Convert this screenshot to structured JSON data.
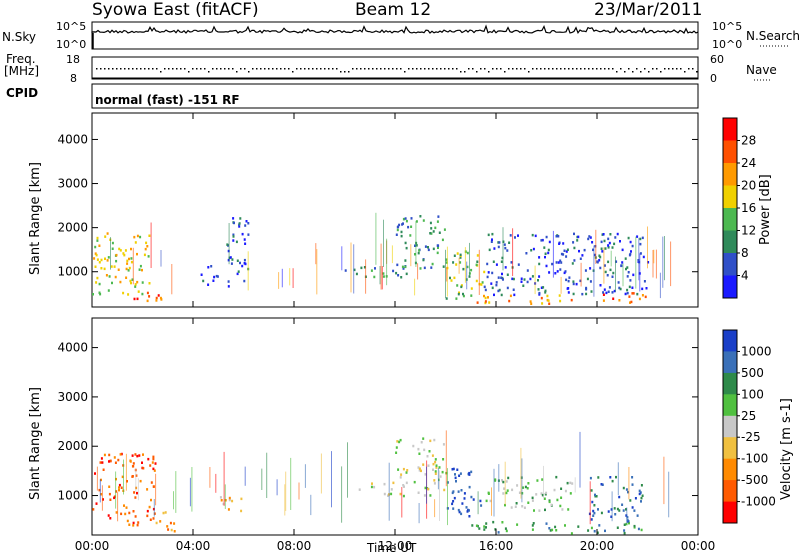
{
  "header": {
    "station": "Syowa East (fitACF)",
    "beam": "Beam 12",
    "date": "23/Mar/2011"
  },
  "nsky_panel": {
    "left_label": "N.Sky",
    "right_label": "N.Search",
    "left_ticks": [
      "10^5",
      "10^0"
    ],
    "right_ticks": [
      "10^5",
      "10^0"
    ]
  },
  "freq_panel": {
    "left_label_1": "Freq.",
    "left_label_2": "[MHz]",
    "right_label": "Nave",
    "left_ticks": [
      "18",
      "8"
    ],
    "right_ticks": [
      "60",
      "0"
    ]
  },
  "cpid": {
    "label": "CPID",
    "value": "normal (fast) -151 RF"
  },
  "chart_data": [
    {
      "type": "heatmap",
      "name": "power",
      "ylabel": "Slant Range [km]",
      "yticks": [
        1000,
        2000,
        3000,
        4000
      ],
      "ylim": [
        200,
        4600
      ],
      "xticks": [
        "00:00",
        "04:00",
        "08:00",
        "12:00",
        "16:00",
        "20:00",
        "00:00"
      ],
      "xlim_hours": [
        0,
        24
      ],
      "colorbar": {
        "label": "Power [dB]",
        "ticks": [
          "4",
          "8",
          "12",
          "16",
          "20",
          "24",
          "28"
        ],
        "colors": [
          "#1a1aff",
          "#3050c8",
          "#2f8a5a",
          "#4cb850",
          "#f0d000",
          "#ff9a00",
          "#ff5000",
          "#ff0000"
        ]
      },
      "regions": [
        {
          "t0": 0.0,
          "t1": 2.3,
          "r0": 500,
          "r1": 1900,
          "level": 4
        },
        {
          "t0": 1.5,
          "t1": 2.8,
          "r0": 300,
          "r1": 600,
          "level": 6
        },
        {
          "t0": 4.3,
          "t1": 5.0,
          "r0": 700,
          "r1": 1200,
          "level": 1
        },
        {
          "t0": 5.3,
          "t1": 6.2,
          "r0": 600,
          "r1": 2300,
          "level": 1
        },
        {
          "t0": 10.0,
          "t1": 12.5,
          "r0": 900,
          "r1": 1200,
          "level": 2
        },
        {
          "t0": 12.0,
          "t1": 14.0,
          "r0": 1100,
          "r1": 2300,
          "level": 2
        },
        {
          "t0": 14.0,
          "t1": 15.5,
          "r0": 400,
          "r1": 1500,
          "level": 3
        },
        {
          "t0": 15.0,
          "t1": 19.0,
          "r0": 300,
          "r1": 500,
          "level": 5
        },
        {
          "t0": 20.0,
          "t1": 21.9,
          "r0": 300,
          "r1": 550,
          "level": 6
        },
        {
          "t0": 15.5,
          "t1": 22.0,
          "r0": 500,
          "r1": 1900,
          "level": 1
        }
      ]
    },
    {
      "type": "heatmap",
      "name": "velocity",
      "ylabel": "Slant Range [km]",
      "yticks": [
        1000,
        2000,
        3000,
        4000
      ],
      "ylim": [
        200,
        4600
      ],
      "xticks": [
        "00:00",
        "04:00",
        "08:00",
        "12:00",
        "16:00",
        "20:00",
        "00:00"
      ],
      "xlim_hours": [
        0,
        24
      ],
      "xlabel": "Time UT",
      "colorbar": {
        "label": "Velocity [m s-1]",
        "ticks": [
          "1000",
          "500",
          "100",
          "25",
          "-25",
          "-100",
          "-500",
          "-1000"
        ],
        "colors": [
          "#1a3fc8",
          "#3a70b8",
          "#2e8a4a",
          "#50c040",
          "#c8c8c8",
          "#f0c040",
          "#ff8a00",
          "#ff5a00",
          "#ff0000"
        ]
      },
      "regions": [
        {
          "t0": 0.0,
          "t1": 2.5,
          "r0": 400,
          "r1": 1900,
          "level": 7
        },
        {
          "t0": 2.5,
          "t1": 3.5,
          "r0": 300,
          "r1": 700,
          "level": 6
        },
        {
          "t0": 5.0,
          "t1": 6.0,
          "r0": 700,
          "r1": 1100,
          "level": 5
        },
        {
          "t0": 10.5,
          "t1": 14.0,
          "r0": 1000,
          "r1": 1300,
          "level": 4
        },
        {
          "t0": 12.0,
          "t1": 14.0,
          "r0": 1300,
          "r1": 2200,
          "level": 4
        },
        {
          "t0": 14.0,
          "t1": 15.5,
          "r0": 600,
          "r1": 1600,
          "level": 0
        },
        {
          "t0": 15.0,
          "t1": 22.0,
          "r0": 250,
          "r1": 500,
          "level": 2
        },
        {
          "t0": 19.5,
          "t1": 21.8,
          "r0": 500,
          "r1": 1400,
          "level": 1
        },
        {
          "t0": 15.5,
          "t1": 19.0,
          "r0": 700,
          "r1": 1400,
          "level": 3
        }
      ]
    }
  ]
}
